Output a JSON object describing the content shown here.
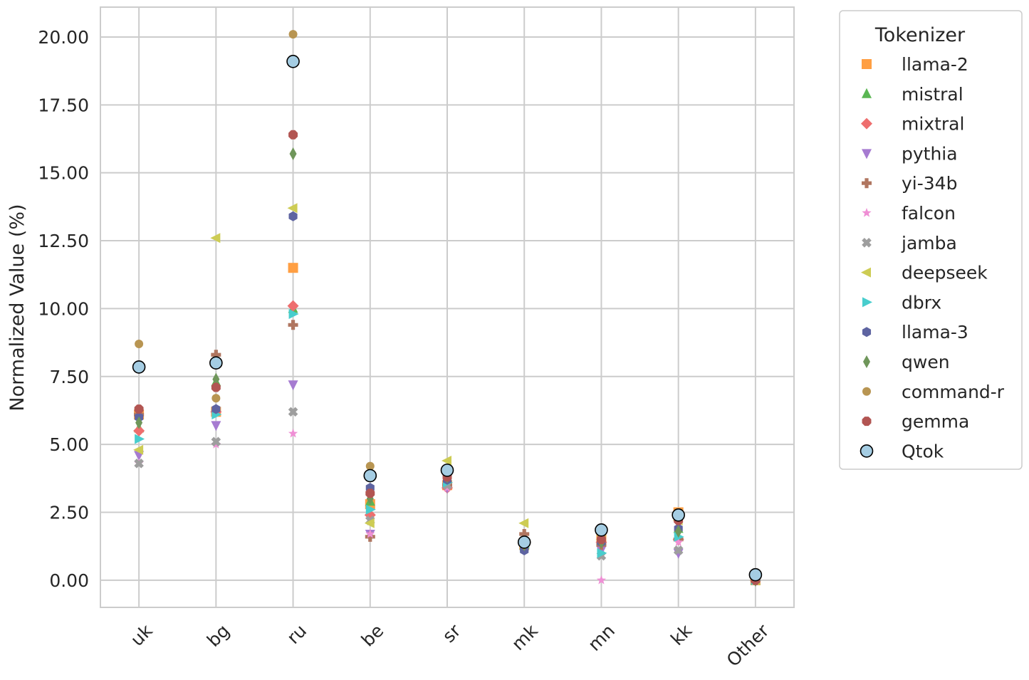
{
  "chart_data": {
    "type": "scatter",
    "title": "",
    "xlabel": "",
    "ylabel": "Normalized Value (%)",
    "categories": [
      "uk",
      "bg",
      "ru",
      "be",
      "sr",
      "mk",
      "mn",
      "kk",
      "Other"
    ],
    "ylim": [
      -1.0,
      21.1
    ],
    "yticks": [
      "0.00",
      "2.50",
      "5.00",
      "7.50",
      "10.00",
      "12.50",
      "15.00",
      "17.50",
      "20.00"
    ],
    "grid": true,
    "legend": {
      "title": "Tokenizer",
      "placement": "outside-right"
    },
    "series": [
      {
        "name": "llama-2",
        "color": "#ff9f43",
        "marker": "square",
        "values": [
          6.1,
          6.2,
          11.5,
          2.8,
          3.5,
          1.3,
          1.5,
          2.5,
          0.0
        ]
      },
      {
        "name": "mistral",
        "color": "#5ab653",
        "marker": "triangle-up",
        "values": [
          5.6,
          7.3,
          10.0,
          2.9,
          3.6,
          1.3,
          1.4,
          1.9,
          0.0
        ]
      },
      {
        "name": "mixtral",
        "color": "#ee6e6e",
        "marker": "diamond",
        "values": [
          5.5,
          6.2,
          10.1,
          2.4,
          3.4,
          1.3,
          1.4,
          1.5,
          0.0
        ]
      },
      {
        "name": "pythia",
        "color": "#a67bd1",
        "marker": "triangle-down",
        "values": [
          4.6,
          5.7,
          7.2,
          1.7,
          3.4,
          1.2,
          1.1,
          1.0,
          0.0
        ]
      },
      {
        "name": "yi-34b",
        "color": "#b07660",
        "marker": "plus",
        "values": [
          6.1,
          8.3,
          9.4,
          1.6,
          3.5,
          1.7,
          1.3,
          1.5,
          0.0
        ]
      },
      {
        "name": "falcon",
        "color": "#ef8fd5",
        "marker": "star",
        "values": [
          4.3,
          5.0,
          5.4,
          1.7,
          3.4,
          1.2,
          0.0,
          1.4,
          0.0
        ]
      },
      {
        "name": "jamba",
        "color": "#9e9e9e",
        "marker": "x",
        "values": [
          4.3,
          5.1,
          6.2,
          2.2,
          3.5,
          1.2,
          0.9,
          1.1,
          0.0
        ]
      },
      {
        "name": "deepseek",
        "color": "#cdcc54",
        "marker": "triangle-left",
        "values": [
          4.8,
          12.6,
          13.7,
          2.1,
          4.4,
          2.1,
          1.5,
          2.2,
          0.0
        ]
      },
      {
        "name": "dbrx",
        "color": "#48cdcd",
        "marker": "triangle-right",
        "values": [
          5.2,
          6.1,
          9.8,
          2.6,
          3.6,
          1.2,
          1.0,
          1.6,
          0.0
        ]
      },
      {
        "name": "llama-3",
        "color": "#5e64a1",
        "marker": "hexagon",
        "values": [
          6.0,
          6.3,
          13.4,
          3.4,
          3.7,
          1.1,
          1.4,
          1.9,
          0.0
        ]
      },
      {
        "name": "qwen",
        "color": "#6f965a",
        "marker": "thin-diamond",
        "values": [
          5.8,
          7.4,
          15.7,
          3.0,
          3.8,
          1.3,
          1.4,
          1.8,
          0.0
        ]
      },
      {
        "name": "command-r",
        "color": "#b89552",
        "marker": "circle",
        "values": [
          8.7,
          6.7,
          20.1,
          4.2,
          3.9,
          1.3,
          1.6,
          2.3,
          0.1
        ]
      },
      {
        "name": "gemma",
        "color": "#b25552",
        "marker": "octagon",
        "values": [
          6.3,
          7.1,
          16.4,
          3.2,
          3.8,
          1.4,
          1.5,
          2.2,
          0.0
        ]
      },
      {
        "name": "Qtok",
        "color": "#a5cde3",
        "marker": "circle-outlined",
        "values": [
          7.85,
          8.0,
          19.1,
          3.85,
          4.05,
          1.4,
          1.85,
          2.4,
          0.2
        ]
      }
    ]
  }
}
